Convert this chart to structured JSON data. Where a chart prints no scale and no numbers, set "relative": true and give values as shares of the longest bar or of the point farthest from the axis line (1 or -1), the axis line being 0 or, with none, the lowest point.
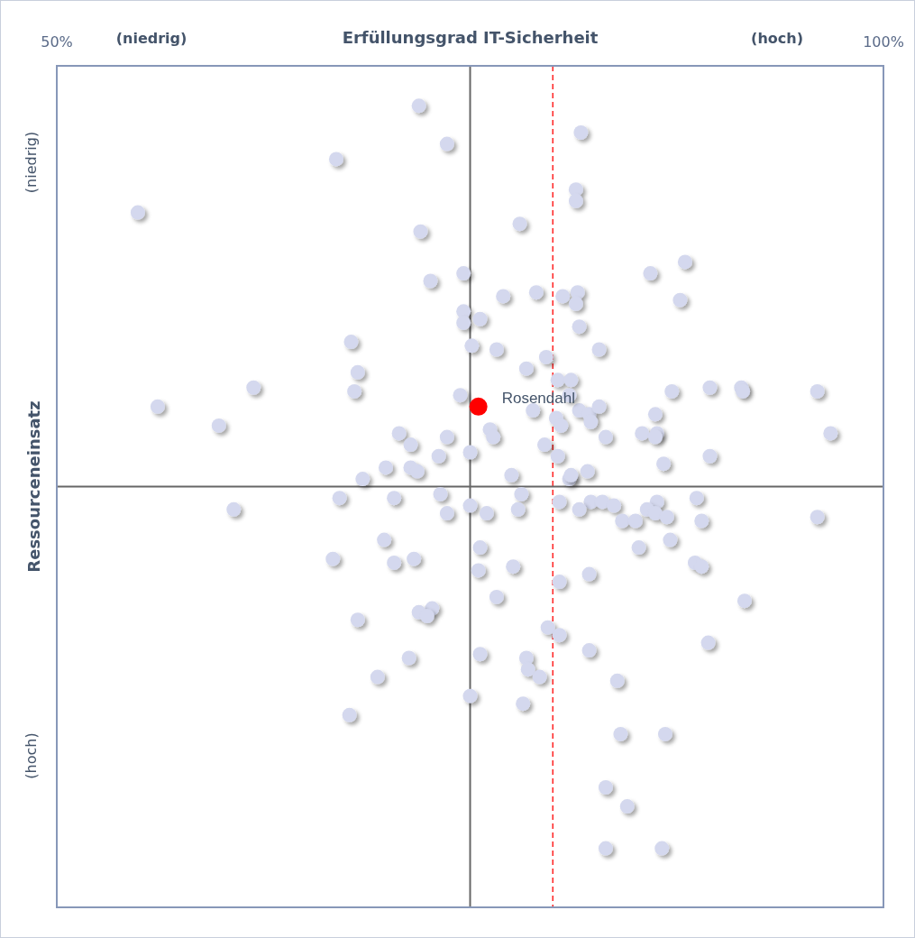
{
  "chart_data": {
    "type": "scatter",
    "xlabel": "Erfüllungsgrad IT-Sicherheit",
    "ylabel": "Ressourceneinsatz",
    "relative": true,
    "marker": "circle",
    "xlim": [
      50,
      100
    ],
    "xticks": [
      {
        "value": 50,
        "label": "50%"
      },
      {
        "value": 100,
        "label": "100%"
      }
    ],
    "annotations": [
      "(niedrig)",
      "(hoch)",
      "(niedrig)",
      "(hoch)"
    ],
    "ref_lines": [
      {
        "axis": "x",
        "value": 75,
        "color": "#666666",
        "line_style": "solid"
      },
      {
        "axis": "x",
        "value": 80,
        "color": "#ff0000",
        "line_style": "dashed"
      }
    ],
    "series": [
      {
        "color": "#d4d8ee",
        "x": [
          71.9,
          73.6,
          81.7,
          66.9,
          54.9,
          81.4,
          81.4,
          78.0,
          72.0,
          88.0,
          85.9,
          74.6,
          72.6,
          77.0,
          79.0,
          80.6,
          81.5,
          81.4,
          87.7,
          74.6,
          74.6,
          75.6,
          81.6,
          67.8,
          75.1,
          76.6,
          79.6,
          82.8,
          78.4,
          68.2,
          80.3,
          81.1,
          68.0,
          61.9,
          74.4,
          87.2,
          89.5,
          91.4,
          91.5,
          96.0,
          56.1,
          78.8,
          81.6,
          82.2,
          82.8,
          81.0,
          59.8,
          80.2,
          80.5,
          82.3,
          86.2,
          85.4,
          86.3,
          86.2,
          96.8,
          76.2,
          76.4,
          70.7,
          71.4,
          73.6,
          79.5,
          83.2,
          73.1,
          75.0,
          80.3,
          86.7,
          89.5,
          69.9,
          71.4,
          71.8,
          77.5,
          81.0,
          81.1,
          82.1,
          68.5,
          67.1,
          70.4,
          73.2,
          78.1,
          75.0,
          80.4,
          82.3,
          83.0,
          83.7,
          88.7,
          86.3,
          60.7,
          73.6,
          76.0,
          77.9,
          81.6,
          84.2,
          85.0,
          85.7,
          86.2,
          86.9,
          89.0,
          96.0,
          69.8,
          75.6,
          85.2,
          87.1,
          66.7,
          70.4,
          71.6,
          77.6,
          75.5,
          82.2,
          88.6,
          89.0,
          80.4,
          76.6,
          91.6,
          72.7,
          71.9,
          72.4,
          68.2,
          79.7,
          80.4,
          89.4,
          71.3,
          75.6,
          82.2,
          78.4,
          78.5,
          79.2,
          69.4,
          83.9,
          75.0,
          78.2,
          67.7,
          84.1,
          86.8,
          83.2,
          84.5,
          83.2,
          86.6
        ],
        "values": [
          1.0,
          0.9,
          0.93,
          0.86,
          0.72,
          0.78,
          0.75,
          0.69,
          0.67,
          0.59,
          0.56,
          0.56,
          0.54,
          0.5,
          0.51,
          0.5,
          0.51,
          0.48,
          0.49,
          0.46,
          0.43,
          0.44,
          0.42,
          0.38,
          0.37,
          0.36,
          0.34,
          0.36,
          0.31,
          0.3,
          0.28,
          0.28,
          0.25,
          0.26,
          0.24,
          0.25,
          0.26,
          0.26,
          0.25,
          0.25,
          0.21,
          0.2,
          0.2,
          0.19,
          0.21,
          0.24,
          0.16,
          0.18,
          0.16,
          0.17,
          0.19,
          0.14,
          0.14,
          0.13,
          0.14,
          0.15,
          0.13,
          0.14,
          0.11,
          0.13,
          0.11,
          0.13,
          0.08,
          0.09,
          0.08,
          0.06,
          0.08,
          0.05,
          0.05,
          0.04,
          0.03,
          0.02,
          0.03,
          0.04,
          0.02,
          -0.03,
          -0.03,
          -0.02,
          -0.02,
          -0.05,
          -0.04,
          -0.04,
          -0.04,
          -0.05,
          -0.03,
          -0.04,
          -0.06,
          -0.07,
          -0.07,
          -0.06,
          -0.06,
          -0.09,
          -0.09,
          -0.06,
          -0.07,
          -0.08,
          -0.09,
          -0.08,
          -0.14,
          -0.16,
          -0.16,
          -0.14,
          -0.19,
          -0.2,
          -0.19,
          -0.21,
          -0.22,
          -0.23,
          -0.2,
          -0.21,
          -0.25,
          -0.29,
          -0.3,
          -0.32,
          -0.33,
          -0.34,
          -0.35,
          -0.37,
          -0.39,
          -0.41,
          -0.45,
          -0.44,
          -0.43,
          -0.45,
          -0.48,
          -0.5,
          -0.5,
          -0.51,
          -0.55,
          -0.57,
          -0.6,
          -0.65,
          -0.65,
          -0.79,
          -0.84,
          -0.95,
          -0.95
        ]
      },
      {
        "name": "Rosendahl",
        "color": "#ff0000",
        "x": [
          75.5
        ],
        "values": [
          0.21
        ]
      }
    ]
  }
}
